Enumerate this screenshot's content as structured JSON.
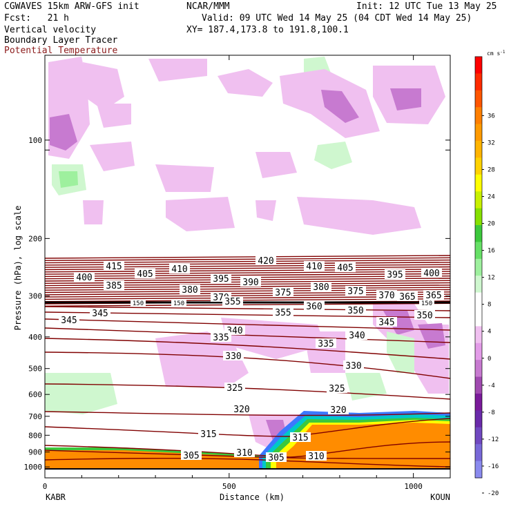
{
  "header": {
    "model": "CGWAVES 15km ARW-GFS init",
    "org": "NCAR/MMM",
    "init": "Init: 12 UTC Tue 13 May 25",
    "fcst": "Fcst:   21 h",
    "valid": "Valid: 09 UTC Wed 14 May 25 (04 CDT Wed 14 May 25)",
    "field1": "Vertical velocity",
    "xy": "XY= 187.4,173.8 to 191.8,100.1",
    "field2": "Boundary Layer Tracer",
    "field3": "Potential Temperature"
  },
  "chart_data": {
    "type": "contour",
    "xlabel": "Distance (km)",
    "ylabel": "Pressure (hPa), log scale",
    "xlim": [
      0,
      1100
    ],
    "x_ticks": [
      "0",
      "500",
      "1000"
    ],
    "y_ticks": [
      "100",
      "200",
      "300",
      "400",
      "500",
      "600",
      "700",
      "800",
      "900",
      "1000"
    ],
    "endpoints": {
      "left": "KABR",
      "right": "KOUN"
    },
    "colorbar": {
      "unit": "cm s",
      "unit_exp": "-1",
      "labels": [
        "36",
        "32",
        "28",
        "24",
        "20",
        "16",
        "12",
        "8",
        "4",
        "0",
        "-4",
        "-8",
        "-12",
        "-16",
        "-20"
      ],
      "colors": [
        "#ff0000",
        "#ff2a00",
        "#ff5500",
        "#ff7f00",
        "#ff9a00",
        "#ffb400",
        "#ffd200",
        "#ffff00",
        "#c8f000",
        "#86e000",
        "#3cc83c",
        "#66e066",
        "#9ef09e",
        "#cff7cf",
        "#ffffff",
        "#ffffff",
        "#f0c0f0",
        "#e39ce8",
        "#c77ad0",
        "#a04ab0",
        "#7a1a9a",
        "#6a2aaa",
        "#7048c0",
        "#7868d8",
        "#8a8aee"
      ]
    },
    "theta_labels": [
      "420",
      "415",
      "410",
      "410",
      "405",
      "405",
      "400",
      "400",
      "395",
      "395",
      "390",
      "385",
      "380",
      "380",
      "375",
      "375",
      "370",
      "370",
      "365",
      "365",
      "360",
      "355",
      "355",
      "350",
      "350",
      "345",
      "345",
      "345",
      "340",
      "340",
      "335",
      "335",
      "330",
      "330",
      "325",
      "325",
      "320",
      "320",
      "315",
      "315",
      "310",
      "310",
      "305",
      "305"
    ],
    "tropopause_labels": [
      "150",
      "150",
      "150"
    ]
  }
}
